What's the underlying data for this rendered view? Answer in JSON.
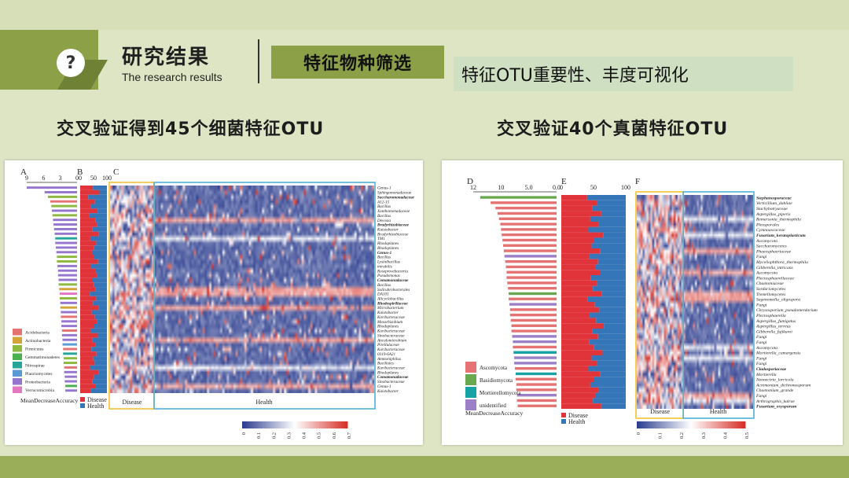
{
  "header": {
    "title": "研究结果",
    "subtitle": "The research results",
    "tag": "特征物种筛选",
    "subtag": "特征OTU重要性、丰度可视化",
    "icon": "question-icon"
  },
  "sections": {
    "left_title": "交叉验证得到45个细菌特征OTU",
    "right_title": "交叉验证40个真菌特征OTU"
  },
  "chart_data": [
    {
      "type": "heatmap",
      "panel_labels": [
        "A",
        "B",
        "C"
      ],
      "importance_axis": {
        "label": "MeanDecreaseAccuracy",
        "ticks": [
          "9",
          "6",
          "3",
          "0"
        ],
        "range": [
          9,
          0
        ]
      },
      "abundance_axis": {
        "ticks": [
          "0",
          "50",
          "100"
        ],
        "range": [
          0,
          100
        ]
      },
      "group_legend": {
        "disease": "Disease",
        "health": "Health"
      },
      "group_labels": [
        "Disease",
        "Health"
      ],
      "phylum_legend": [
        "Acidobacteria",
        "Actinobacteria",
        "Firmicutes",
        "Gemmatimonadetes",
        "Nitrospirae",
        "Planctomycetes",
        "Proteobacteria",
        "Verrucomicrobia"
      ],
      "phylum_colors": [
        "#e57373",
        "#d4a43a",
        "#8db93e",
        "#4caf50",
        "#26a69a",
        "#5b9bd5",
        "#9575cd",
        "#e377c2"
      ],
      "colorbar": {
        "ticks": [
          "0",
          "0.1",
          "0.2",
          "0.3",
          "0.4",
          "0.5",
          "0.6",
          "0.7"
        ],
        "range": [
          0,
          0.7
        ],
        "low": "#2c3e8f",
        "mid": "#ffffff",
        "high": "#d73027"
      },
      "otus": [
        {
          "name": "Genus-1",
          "imp": 9.0,
          "dis": 48,
          "phylum": 6
        },
        {
          "name": "Sphingomonadaceae",
          "imp": 5.8,
          "dis": 72,
          "phylum": 6
        },
        {
          "name": "Saccharomonadaceae",
          "imp": 5.2,
          "dis": 30,
          "phylum": 2,
          "bold": true
        },
        {
          "name": "A12-15",
          "imp": 4.8,
          "dis": 55,
          "phylum": 0
        },
        {
          "name": "Bacillus",
          "imp": 4.6,
          "dis": 40,
          "phylum": 2
        },
        {
          "name": "Xanthomonadaceae",
          "imp": 4.5,
          "dis": 65,
          "phylum": 6
        },
        {
          "name": "Bacillus",
          "imp": 4.4,
          "dis": 35,
          "phylum": 2
        },
        {
          "name": "Devosia",
          "imp": 4.3,
          "dis": 58,
          "phylum": 6
        },
        {
          "name": "Bradyrhizobiaceae",
          "imp": 4.2,
          "dis": 62,
          "phylum": 6,
          "bold": true
        },
        {
          "name": "Kaistobacter",
          "imp": 4.1,
          "dis": 45,
          "phylum": 6
        },
        {
          "name": "Bradyrhizobiaceae",
          "imp": 4.0,
          "dis": 70,
          "phylum": 6
        },
        {
          "name": "TM1",
          "imp": 3.9,
          "dis": 38,
          "phylum": 4
        },
        {
          "name": "Rhodoplanes",
          "imp": 3.9,
          "dis": 60,
          "phylum": 6
        },
        {
          "name": "Rhodoplanes",
          "imp": 3.8,
          "dis": 52,
          "phylum": 6
        },
        {
          "name": "Genus-1",
          "imp": 3.7,
          "dis": 44,
          "phylum": 6,
          "bold": true
        },
        {
          "name": "Bacillus",
          "imp": 3.6,
          "dis": 50,
          "phylum": 2
        },
        {
          "name": "Lysinibacillus",
          "imp": 3.6,
          "dis": 67,
          "phylum": 2
        },
        {
          "name": "mirabilis",
          "imp": 3.5,
          "dis": 41,
          "phylum": 6
        },
        {
          "name": "Roseprovebacteria",
          "imp": 3.4,
          "dis": 56,
          "phylum": 6
        },
        {
          "name": "Pseudomonas",
          "imp": 3.4,
          "dis": 63,
          "phylum": 6
        },
        {
          "name": "Comamonadaceae",
          "imp": 3.3,
          "dis": 47,
          "phylum": 6,
          "bold": true
        },
        {
          "name": "Bacillus",
          "imp": 3.3,
          "dis": 52,
          "phylum": 2
        },
        {
          "name": "Solirubrobacterales",
          "imp": 3.2,
          "dis": 58,
          "phylum": 1
        },
        {
          "name": "DA101",
          "imp": 3.1,
          "dis": 36,
          "phylum": 7
        },
        {
          "name": "Alicyclobacillus",
          "imp": 3.1,
          "dis": 60,
          "phylum": 2
        },
        {
          "name": "Rhodospirillaceae",
          "imp": 3.0,
          "dis": 48,
          "phylum": 6,
          "bold": true
        },
        {
          "name": "Microbacterium",
          "imp": 3.0,
          "dis": 70,
          "phylum": 1
        },
        {
          "name": "Kaistobacter",
          "imp": 2.9,
          "dis": 43,
          "phylum": 6
        },
        {
          "name": "Koribacteraceae",
          "imp": 2.9,
          "dis": 55,
          "phylum": 0
        },
        {
          "name": "Mesorhizobium",
          "imp": 2.8,
          "dis": 62,
          "phylum": 6
        },
        {
          "name": "Rhodoplanes",
          "imp": 2.8,
          "dis": 50,
          "phylum": 6
        },
        {
          "name": "Koribacteraceae",
          "imp": 2.7,
          "dis": 38,
          "phylum": 0
        },
        {
          "name": "Sinobacteraceae",
          "imp": 2.7,
          "dis": 66,
          "phylum": 6
        },
        {
          "name": "Ancalomicrobium",
          "imp": 2.6,
          "dis": 46,
          "phylum": 6
        },
        {
          "name": "Pirellulaceae",
          "imp": 2.6,
          "dis": 57,
          "phylum": 5
        },
        {
          "name": "Koribacteraceae",
          "imp": 2.5,
          "dis": 42,
          "phylum": 0
        },
        {
          "name": "0319-6A21",
          "imp": 2.5,
          "dis": 61,
          "phylum": 4
        },
        {
          "name": "Ammoniphilus",
          "imp": 2.4,
          "dis": 49,
          "phylum": 2
        },
        {
          "name": "Bacillales",
          "imp": 2.4,
          "dis": 54,
          "phylum": 2
        },
        {
          "name": "Koribacteraceae",
          "imp": 2.3,
          "dis": 37,
          "phylum": 0
        },
        {
          "name": "Rhodoplanes",
          "imp": 2.3,
          "dis": 68,
          "phylum": 6
        },
        {
          "name": "Comamonadaceae",
          "imp": 2.2,
          "dis": 51,
          "phylum": 6,
          "bold": true
        },
        {
          "name": "Sinobacteraceae",
          "imp": 2.2,
          "dis": 45,
          "phylum": 6
        },
        {
          "name": "Genus-1",
          "imp": 2.1,
          "dis": 59,
          "phylum": 3
        },
        {
          "name": "Kaistobacter",
          "imp": 2.1,
          "dis": 40,
          "phylum": 6
        }
      ]
    },
    {
      "type": "heatmap",
      "panel_labels": [
        "D",
        "E",
        "F"
      ],
      "importance_axis": {
        "label": "MeanDecreaseAccuracy",
        "ticks": [
          "12",
          "10",
          "5.0",
          "0.0"
        ],
        "range": [
          12,
          0
        ]
      },
      "abundance_axis": {
        "ticks": [
          "0",
          "50",
          "100"
        ],
        "range": [
          0,
          100
        ]
      },
      "group_legend": {
        "disease": "Disease",
        "health": "Health"
      },
      "group_labels": [
        "Disease",
        "Health"
      ],
      "phylum_legend": [
        "Ascomycota",
        "Basidiomycota",
        "Mortierellomycota",
        "unidentified"
      ],
      "phylum_colors": [
        "#e57373",
        "#6aa84f",
        "#17a3a3",
        "#9b7fc7"
      ],
      "colorbar": {
        "ticks": [
          "0",
          "0.1",
          "0.2",
          "0.3",
          "0.4",
          "0.5"
        ],
        "range": [
          0,
          0.5
        ],
        "low": "#2c3e8f",
        "mid": "#ffffff",
        "high": "#d73027"
      },
      "otus": [
        {
          "name": "Stephanosporaceae",
          "imp": 11.0,
          "dis": 40,
          "phylum": 1,
          "bold": true
        },
        {
          "name": "Verticillium_dahliae",
          "imp": 9.5,
          "dis": 56,
          "phylum": 0
        },
        {
          "name": "Stachybotryaceae",
          "imp": 8.8,
          "dis": 48,
          "phylum": 0
        },
        {
          "name": "Aspergillus_piperis",
          "imp": 8.5,
          "dis": 62,
          "phylum": 0
        },
        {
          "name": "Remersonia_thermophila",
          "imp": 8.3,
          "dis": 45,
          "phylum": 0
        },
        {
          "name": "Pleosporales",
          "imp": 8.1,
          "dis": 58,
          "phylum": 0
        },
        {
          "name": "Cymnoascaceae",
          "imp": 8.0,
          "dis": 42,
          "phylum": 0
        },
        {
          "name": "Fusarium_keratoplasticum",
          "imp": 7.9,
          "dis": 65,
          "phylum": 0,
          "bold": true
        },
        {
          "name": "Ascomycota",
          "imp": 7.8,
          "dis": 50,
          "phylum": 0
        },
        {
          "name": "Saccharomycetes",
          "imp": 7.7,
          "dis": 47,
          "phylum": 0
        },
        {
          "name": "Phaeosphaeriaceae",
          "imp": 7.6,
          "dis": 60,
          "phylum": 0
        },
        {
          "name": "Fungi",
          "imp": 7.5,
          "dis": 44,
          "phylum": 3
        },
        {
          "name": "Myceliophthora_thermophila",
          "imp": 7.4,
          "dis": 57,
          "phylum": 0
        },
        {
          "name": "Gibberella_intricans",
          "imp": 7.3,
          "dis": 53,
          "phylum": 0
        },
        {
          "name": "Ascomycota",
          "imp": 7.2,
          "dis": 61,
          "phylum": 0
        },
        {
          "name": "Plectosphaerellaceae",
          "imp": 7.2,
          "dis": 46,
          "phylum": 0
        },
        {
          "name": "Chaetomiaceae",
          "imp": 7.1,
          "dis": 55,
          "phylum": 0
        },
        {
          "name": "Sordariomycetes",
          "imp": 7.0,
          "dis": 49,
          "phylum": 0
        },
        {
          "name": "Tremellomycetes",
          "imp": 6.9,
          "dis": 63,
          "phylum": 1
        },
        {
          "name": "Sagenomella_oligospora",
          "imp": 6.9,
          "dis": 41,
          "phylum": 0
        },
        {
          "name": "Fungi",
          "imp": 6.8,
          "dis": 52,
          "phylum": 3
        },
        {
          "name": "Chrysosporium_pseudomerdarium",
          "imp": 6.7,
          "dis": 59,
          "phylum": 0
        },
        {
          "name": "Plectosphaerella",
          "imp": 6.7,
          "dis": 44,
          "phylum": 0
        },
        {
          "name": "Aspergillus_fumigatus",
          "imp": 6.6,
          "dis": 54,
          "phylum": 0
        },
        {
          "name": "Aspergillus_terreus",
          "imp": 6.5,
          "dis": 66,
          "phylum": 0
        },
        {
          "name": "Gibberella_fujikuroi",
          "imp": 6.5,
          "dis": 48,
          "phylum": 0
        },
        {
          "name": "Fungi",
          "imp": 6.4,
          "dis": 57,
          "phylum": 3
        },
        {
          "name": "Fungi",
          "imp": 6.3,
          "dis": 43,
          "phylum": 3
        },
        {
          "name": "Ascomycota",
          "imp": 6.3,
          "dis": 51,
          "phylum": 0
        },
        {
          "name": "Mortierella_camargensis",
          "imp": 6.2,
          "dis": 64,
          "phylum": 2
        },
        {
          "name": "Fungi",
          "imp": 6.1,
          "dis": 47,
          "phylum": 3
        },
        {
          "name": "Fungi",
          "imp": 6.1,
          "dis": 56,
          "phylum": 3
        },
        {
          "name": "Cladosporiaceae",
          "imp": 6.0,
          "dis": 42,
          "phylum": 0,
          "bold": true
        },
        {
          "name": "Mortierella",
          "imp": 5.9,
          "dis": 60,
          "phylum": 2
        },
        {
          "name": "Neonectria_lorricola",
          "imp": 5.9,
          "dis": 50,
          "phylum": 0
        },
        {
          "name": "Acremonium_dichromosporum",
          "imp": 5.8,
          "dis": 45,
          "phylum": 0
        },
        {
          "name": "Chaetomium_grande",
          "imp": 5.8,
          "dis": 58,
          "phylum": 0
        },
        {
          "name": "Fungi",
          "imp": 5.7,
          "dis": 53,
          "phylum": 3
        },
        {
          "name": "Arthrographis_kalrae",
          "imp": 5.7,
          "dis": 49,
          "phylum": 0
        },
        {
          "name": "Fusarium_oxysporum",
          "imp": 5.6,
          "dis": 62,
          "phylum": 0,
          "bold": true
        }
      ]
    }
  ]
}
